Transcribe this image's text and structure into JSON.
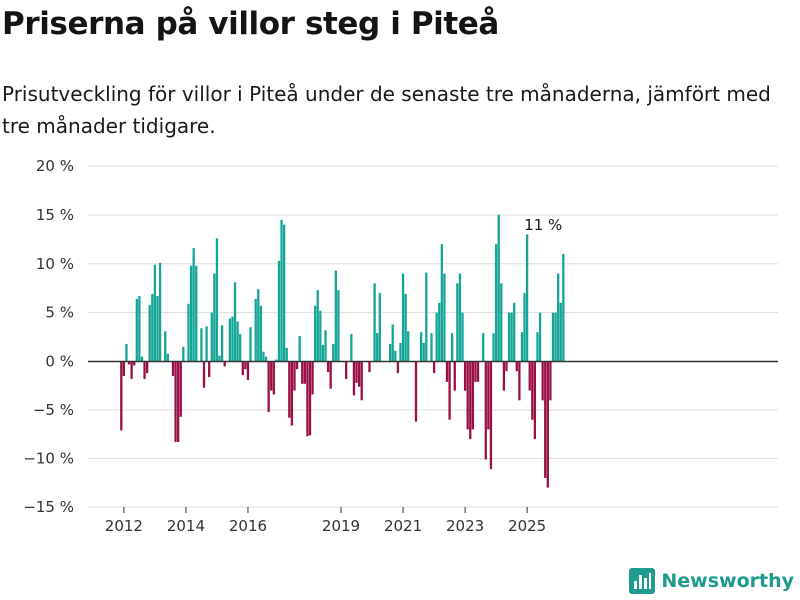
{
  "title": "Priserna på villor steg i Piteå",
  "subtitle": "Prisutveckling för villor i Piteå under de senaste tre månaderna, jämfört med tre månader tidigare.",
  "brand": {
    "name": "Newsworthy",
    "icon": "bar-chart-logo-icon",
    "color": "#1e9a8e"
  },
  "colors": {
    "positive": "#14a597",
    "negative": "#9a0f46",
    "grid": "#dddddd",
    "zero_line": "#333333"
  },
  "chart_data": {
    "type": "bar",
    "x_start": "2011-12",
    "x_ticks": [
      {
        "label": "2012",
        "x": "2012-01"
      },
      {
        "label": "2014",
        "x": "2014-01"
      },
      {
        "label": "2016",
        "x": "2016-01"
      },
      {
        "label": "2019",
        "x": "2019-01"
      },
      {
        "label": "2021",
        "x": "2021-01"
      },
      {
        "label": "2023",
        "x": "2023-01"
      },
      {
        "label": "2025",
        "x": "2025-01"
      }
    ],
    "y_ticks": [
      {
        "value": 20,
        "label": "20 %"
      },
      {
        "value": 15,
        "label": "15 %"
      },
      {
        "value": 10,
        "label": "10 %"
      },
      {
        "value": 5,
        "label": "5 %"
      },
      {
        "value": 0,
        "label": "0 %"
      },
      {
        "value": -5,
        "label": "−5 %"
      },
      {
        "value": -10,
        "label": "−10 %"
      },
      {
        "value": -15,
        "label": "−15 %"
      }
    ],
    "ylim": [
      -15,
      20
    ],
    "grid": true,
    "annotation": {
      "label": "11 %",
      "x": "2025-08",
      "y": 11
    },
    "values": [
      -7.1,
      -1.5,
      1.8,
      -0.3,
      -1.8,
      -0.4,
      6.4,
      6.7,
      0.5,
      -1.8,
      -1.2,
      5.8,
      6.9,
      9.9,
      6.7,
      10.1,
      0,
      3.1,
      0.8,
      0,
      -1.5,
      -8.3,
      -8.3,
      -5.7,
      1.5,
      0,
      5.9,
      9.8,
      11.6,
      9.8,
      0,
      3.4,
      -2.7,
      3.6,
      -1.6,
      5.0,
      9.0,
      12.6,
      0.6,
      3.7,
      -0.5,
      0,
      4.4,
      4.6,
      8.1,
      4.1,
      2.8,
      -1.4,
      -0.8,
      -1.9,
      3.5,
      0,
      6.4,
      7.4,
      5.7,
      1.0,
      0.5,
      -5.2,
      -3.0,
      -3.4,
      0.2,
      10.3,
      14.5,
      14.0,
      1.4,
      -5.8,
      -6.6,
      -3.0,
      -0.8,
      2.6,
      -2.3,
      -2.3,
      -7.7,
      -7.6,
      -3.4,
      5.7,
      7.3,
      5.2,
      1.7,
      3.2,
      -1.1,
      -2.8,
      1.8,
      9.3,
      7.3,
      0,
      0,
      -1.8,
      0,
      2.8,
      -3.5,
      -2.2,
      -2.6,
      -4.0,
      0,
      0,
      -1.1,
      0,
      8.0,
      2.9,
      7.0,
      0,
      0,
      0,
      1.8,
      3.8,
      1.1,
      -1.2,
      1.9,
      9.0,
      6.9,
      3.1,
      0,
      0,
      -6.2,
      0,
      3.0,
      1.9,
      9.1,
      0,
      2.9,
      -1.2,
      5.0,
      6.0,
      12.0,
      9.0,
      -2.1,
      -6.0,
      2.9,
      -3.0,
      8.0,
      9.0,
      5.0,
      -3.0,
      -7.0,
      -8.0,
      -7.0,
      -2.1,
      -2.1,
      0,
      2.9,
      -10.1,
      -7.0,
      -11.1,
      2.9,
      12.0,
      15.0,
      8.0,
      -3.0,
      -1.0,
      5.0,
      5.0,
      6.0,
      -1.0,
      -4.0,
      3.0,
      7.0,
      13.0,
      -3.0,
      -6.0,
      -8.0,
      3.0,
      5.0,
      -4.0,
      -12.0,
      -13.0,
      -4.0,
      5.0,
      5.0,
      9.0,
      6.0,
      11.0
    ]
  }
}
